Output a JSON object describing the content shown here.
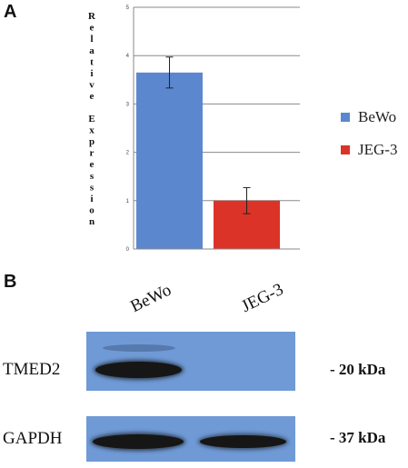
{
  "panel_a": {
    "letter": "A"
  },
  "panel_b": {
    "letter": "B"
  },
  "chart_data": {
    "type": "bar",
    "categories": [
      "BeWo",
      "JEG-3"
    ],
    "series": [
      {
        "values": [
          3.65,
          1.0
        ],
        "errors": [
          0.32,
          0.27
        ]
      }
    ],
    "colors": [
      "#5b87cf",
      "#dc3328"
    ],
    "ylabel": "Relative Expression",
    "ylim": [
      0,
      5
    ],
    "yticks": [
      "0",
      "1",
      "2",
      "3",
      "4",
      "5"
    ],
    "grid": true,
    "legend": [
      "BeWo",
      "JEG-3"
    ],
    "legend_position": "right"
  },
  "western_blot": {
    "lane_labels": [
      "BeWo",
      "JEG-3"
    ],
    "rows": [
      {
        "protein": "TMED2",
        "size": "- 20 kDa",
        "band_intensity": [
          1.0,
          0.0
        ]
      },
      {
        "protein": "GAPDH",
        "size": "- 37 kDa",
        "band_intensity": [
          1.0,
          0.8
        ]
      }
    ],
    "blot_color": "#6f9ad6"
  }
}
